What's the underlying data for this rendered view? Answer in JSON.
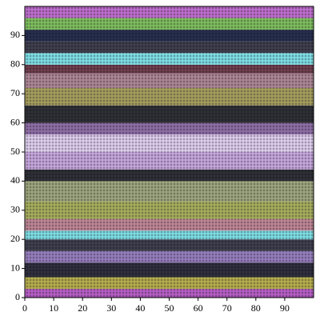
{
  "chart_data": {
    "type": "heatmap",
    "xlim": [
      0,
      100
    ],
    "ylim": [
      0,
      100
    ],
    "xticks": [
      0,
      10,
      20,
      30,
      40,
      50,
      60,
      70,
      80,
      90
    ],
    "yticks": [
      0,
      10,
      20,
      30,
      40,
      50,
      60,
      70,
      80,
      90
    ],
    "ybins": [
      0,
      3,
      7,
      12,
      16,
      20,
      23,
      27,
      33,
      40,
      44,
      50,
      56,
      60,
      66,
      72,
      77,
      80,
      84,
      88,
      92,
      96,
      100
    ],
    "colors": [
      "#b860c8",
      "#b8b050",
      "#303040",
      "#9880c0",
      "#404050",
      "#80e0e8",
      "#c08898",
      "#a8b060",
      "#a0a880",
      "#303038",
      "#c8a8e0",
      "#e0d0f0",
      "#9070a8",
      "#303038",
      "#a8a060",
      "#b08898",
      "#704050",
      "#80e0e8",
      "#404050",
      "#283050",
      "#80c060",
      "#c070d0"
    ]
  }
}
